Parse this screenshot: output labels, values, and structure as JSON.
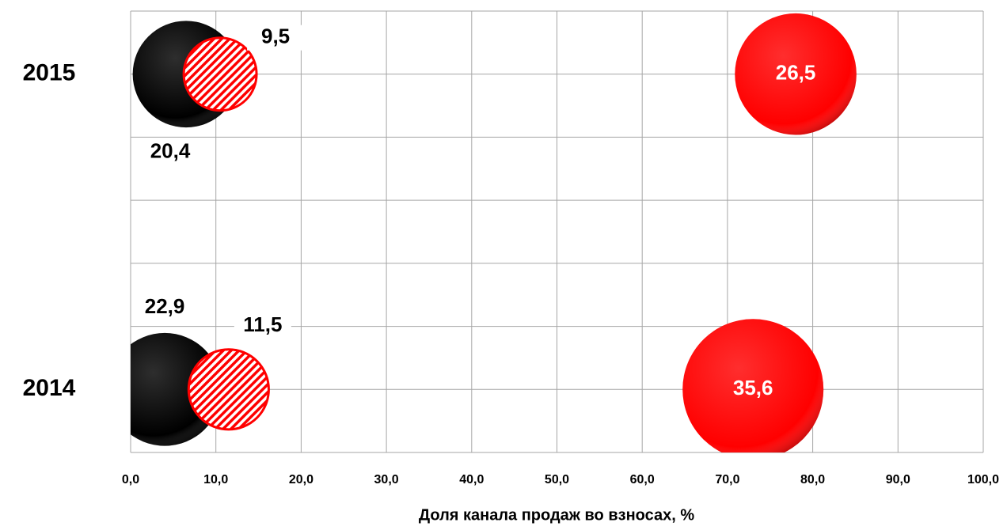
{
  "chart_data": {
    "type": "bubble",
    "categories": [
      "2014",
      "2015"
    ],
    "y": [
      0.5,
      3.0
    ],
    "ylim": [
      0,
      3.5
    ],
    "yticks": [
      0,
      0.5,
      1,
      1.5,
      2,
      2.5,
      3,
      3.5
    ],
    "xlim": [
      0,
      100
    ],
    "xticks": [
      {
        "value": 0,
        "label": "0,0"
      },
      {
        "value": 10,
        "label": "10,0"
      },
      {
        "value": 20,
        "label": "20,0"
      },
      {
        "value": 30,
        "label": "30,0"
      },
      {
        "value": 40,
        "label": "40,0"
      },
      {
        "value": 50,
        "label": "50,0"
      },
      {
        "value": 60,
        "label": "60,0"
      },
      {
        "value": 70,
        "label": "70,0"
      },
      {
        "value": 80,
        "label": "80,0"
      },
      {
        "value": 90,
        "label": "90,0"
      },
      {
        "value": 100,
        "label": "100,0"
      }
    ],
    "x_label": "Доля канала продаж во взносах, %",
    "grid": true,
    "series": [
      {
        "color": "#000000",
        "fill": "solid",
        "x": [
          4,
          6.5
        ],
        "values": [
          22.9,
          20.4
        ],
        "value_labels": [
          "22,9",
          "20,4"
        ]
      },
      {
        "color": "#ff0000",
        "fill": "hatch",
        "x": [
          11.5,
          10.5
        ],
        "values": [
          11.5,
          9.5
        ],
        "value_labels": [
          "11,5",
          "9,5"
        ]
      },
      {
        "color": "#ff0000",
        "fill": "solid",
        "x": [
          73,
          78
        ],
        "values": [
          35.6,
          26.5
        ],
        "value_labels": [
          "35,6",
          "26,5"
        ]
      }
    ]
  }
}
